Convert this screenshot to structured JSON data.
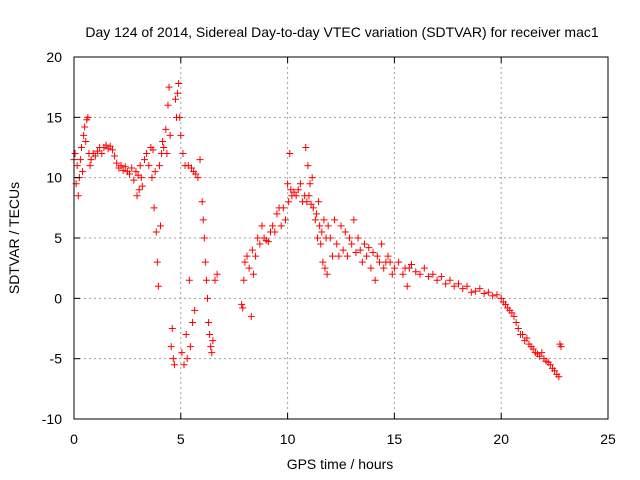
{
  "chart_data": {
    "type": "scatter",
    "title": "Day 124 of 2014, Sidereal Day-to-day VTEC variation (SDTVAR) for receiver mac1",
    "xlabel": "GPS time / hours",
    "ylabel": "SDTVAR / TECUs",
    "xlim": [
      0,
      25
    ],
    "ylim": [
      -10,
      20
    ],
    "xticks": [
      0,
      5,
      10,
      15,
      20,
      25
    ],
    "yticks": [
      -10,
      -5,
      0,
      5,
      10,
      15,
      20
    ],
    "grid": true,
    "marker": "+",
    "color": "#ff0000",
    "series": [
      {
        "name": "mac1",
        "points": [
          [
            0.0,
            11.5
          ],
          [
            0.05,
            12.0
          ],
          [
            0.1,
            9.5
          ],
          [
            0.15,
            11.0
          ],
          [
            0.2,
            8.5
          ],
          [
            0.25,
            10.0
          ],
          [
            0.3,
            11.5
          ],
          [
            0.35,
            12.5
          ],
          [
            0.4,
            10.5
          ],
          [
            0.45,
            13.5
          ],
          [
            0.5,
            14.2
          ],
          [
            0.55,
            13.0
          ],
          [
            0.6,
            14.8
          ],
          [
            0.65,
            15.0
          ],
          [
            0.7,
            12.0
          ],
          [
            0.75,
            11.0
          ],
          [
            0.8,
            11.5
          ],
          [
            0.9,
            12.0
          ],
          [
            1.0,
            11.8
          ],
          [
            1.1,
            12.2
          ],
          [
            1.2,
            12.5
          ],
          [
            1.3,
            12.0
          ],
          [
            1.4,
            12.5
          ],
          [
            1.5,
            12.7
          ],
          [
            1.6,
            12.4
          ],
          [
            1.7,
            12.6
          ],
          [
            1.8,
            12.3
          ],
          [
            1.9,
            11.8
          ],
          [
            2.0,
            11.2
          ],
          [
            2.1,
            10.8
          ],
          [
            2.2,
            11.0
          ],
          [
            2.3,
            10.6
          ],
          [
            2.4,
            10.9
          ],
          [
            2.5,
            10.5
          ],
          [
            2.6,
            10.3
          ],
          [
            2.7,
            10.8
          ],
          [
            2.8,
            9.8
          ],
          [
            2.9,
            10.5
          ],
          [
            2.95,
            8.5
          ],
          [
            3.0,
            10.2
          ],
          [
            3.05,
            9.0
          ],
          [
            3.1,
            11.0
          ],
          [
            3.15,
            10.0
          ],
          [
            3.2,
            9.3
          ],
          [
            3.3,
            11.5
          ],
          [
            3.4,
            12.0
          ],
          [
            3.5,
            11.0
          ],
          [
            3.6,
            12.5
          ],
          [
            3.65,
            10.0
          ],
          [
            3.7,
            12.3
          ],
          [
            3.75,
            7.5
          ],
          [
            3.8,
            10.5
          ],
          [
            3.85,
            5.5
          ],
          [
            3.9,
            3.0
          ],
          [
            3.95,
            1.0
          ],
          [
            4.0,
            11.0
          ],
          [
            4.05,
            6.0
          ],
          [
            4.1,
            12.0
          ],
          [
            4.15,
            13.0
          ],
          [
            4.2,
            12.5
          ],
          [
            4.3,
            14.0
          ],
          [
            4.35,
            12.0
          ],
          [
            4.4,
            16.0
          ],
          [
            4.45,
            17.5
          ],
          [
            4.5,
            13.5
          ],
          [
            4.55,
            -4.0
          ],
          [
            4.6,
            -2.5
          ],
          [
            4.65,
            -5.0
          ],
          [
            4.7,
            -5.5
          ],
          [
            4.75,
            16.5
          ],
          [
            4.8,
            15.0
          ],
          [
            4.85,
            17.0
          ],
          [
            4.9,
            17.8
          ],
          [
            4.95,
            15.0
          ],
          [
            5.0,
            13.5
          ],
          [
            5.05,
            -4.5
          ],
          [
            5.1,
            12.0
          ],
          [
            5.15,
            -5.5
          ],
          [
            5.2,
            11.0
          ],
          [
            5.25,
            -3.0
          ],
          [
            5.3,
            -5.0
          ],
          [
            5.35,
            11.0
          ],
          [
            5.4,
            1.5
          ],
          [
            5.45,
            -4.0
          ],
          [
            5.5,
            10.8
          ],
          [
            5.55,
            -2.0
          ],
          [
            5.6,
            10.5
          ],
          [
            5.65,
            -1.0
          ],
          [
            5.7,
            10.3
          ],
          [
            5.8,
            10.0
          ],
          [
            5.9,
            11.5
          ],
          [
            6.0,
            8.0
          ],
          [
            6.05,
            6.5
          ],
          [
            6.1,
            5.0
          ],
          [
            6.15,
            3.0
          ],
          [
            6.2,
            1.5
          ],
          [
            6.25,
            0.0
          ],
          [
            6.3,
            -2.0
          ],
          [
            6.35,
            -3.0
          ],
          [
            6.4,
            -4.0
          ],
          [
            6.45,
            -4.5
          ],
          [
            6.5,
            -3.5
          ],
          [
            6.6,
            1.5
          ],
          [
            6.7,
            2.0
          ],
          [
            7.85,
            -0.5
          ],
          [
            7.9,
            -0.8
          ],
          [
            7.95,
            1.5
          ],
          [
            8.0,
            3.0
          ],
          [
            8.1,
            3.5
          ],
          [
            8.2,
            2.5
          ],
          [
            8.3,
            -1.5
          ],
          [
            8.35,
            4.0
          ],
          [
            8.4,
            2.0
          ],
          [
            8.5,
            3.5
          ],
          [
            8.6,
            5.0
          ],
          [
            8.7,
            4.5
          ],
          [
            8.8,
            6.0
          ],
          [
            8.9,
            5.0
          ],
          [
            9.0,
            4.8
          ],
          [
            9.1,
            4.7
          ],
          [
            9.2,
            5.5
          ],
          [
            9.3,
            6.0
          ],
          [
            9.4,
            5.5
          ],
          [
            9.5,
            7.0
          ],
          [
            9.6,
            7.5
          ],
          [
            9.7,
            6.0
          ],
          [
            9.8,
            7.5
          ],
          [
            9.9,
            6.5
          ],
          [
            10.0,
            9.5
          ],
          [
            10.05,
            8.0
          ],
          [
            10.1,
            12.0
          ],
          [
            10.15,
            9.0
          ],
          [
            10.2,
            8.5
          ],
          [
            10.3,
            8.8
          ],
          [
            10.4,
            8.5
          ],
          [
            10.5,
            9.0
          ],
          [
            10.6,
            9.5
          ],
          [
            10.7,
            8.0
          ],
          [
            10.8,
            8.5
          ],
          [
            10.85,
            12.5
          ],
          [
            10.9,
            8.0
          ],
          [
            10.95,
            11.0
          ],
          [
            11.0,
            8.5
          ],
          [
            11.05,
            9.5
          ],
          [
            11.1,
            7.8
          ],
          [
            11.15,
            10.0
          ],
          [
            11.2,
            7.5
          ],
          [
            11.3,
            6.5
          ],
          [
            11.35,
            7.0
          ],
          [
            11.4,
            5.0
          ],
          [
            11.45,
            8.0
          ],
          [
            11.5,
            6.0
          ],
          [
            11.55,
            4.5
          ],
          [
            11.6,
            5.5
          ],
          [
            11.65,
            3.0
          ],
          [
            11.7,
            6.5
          ],
          [
            11.75,
            2.5
          ],
          [
            11.8,
            5.0
          ],
          [
            11.85,
            2.0
          ],
          [
            11.9,
            6.0
          ],
          [
            12.0,
            5.0
          ],
          [
            12.1,
            3.5
          ],
          [
            12.2,
            6.5
          ],
          [
            12.3,
            4.5
          ],
          [
            12.4,
            3.5
          ],
          [
            12.5,
            6.0
          ],
          [
            12.6,
            4.0
          ],
          [
            12.7,
            5.5
          ],
          [
            12.8,
            3.5
          ],
          [
            12.9,
            5.0
          ],
          [
            13.0,
            4.5
          ],
          [
            13.1,
            6.5
          ],
          [
            13.2,
            3.8
          ],
          [
            13.3,
            5.0
          ],
          [
            13.4,
            4.0
          ],
          [
            13.5,
            3.0
          ],
          [
            13.6,
            4.5
          ],
          [
            13.7,
            3.5
          ],
          [
            13.8,
            4.2
          ],
          [
            13.9,
            2.5
          ],
          [
            14.0,
            3.8
          ],
          [
            14.1,
            1.5
          ],
          [
            14.2,
            3.5
          ],
          [
            14.3,
            3.0
          ],
          [
            14.4,
            4.5
          ],
          [
            14.5,
            2.5
          ],
          [
            14.6,
            3.0
          ],
          [
            14.7,
            3.5
          ],
          [
            14.8,
            3.0
          ],
          [
            14.9,
            2.0
          ],
          [
            15.0,
            2.5
          ],
          [
            15.2,
            3.0
          ],
          [
            15.4,
            2.0
          ],
          [
            15.5,
            2.5
          ],
          [
            15.6,
            1.0
          ],
          [
            15.7,
            2.5
          ],
          [
            15.8,
            2.8
          ],
          [
            16.0,
            2.2
          ],
          [
            16.2,
            2.0
          ],
          [
            16.4,
            2.5
          ],
          [
            16.6,
            1.8
          ],
          [
            16.8,
            2.0
          ],
          [
            17.0,
            1.5
          ],
          [
            17.2,
            1.8
          ],
          [
            17.4,
            1.2
          ],
          [
            17.6,
            1.5
          ],
          [
            17.8,
            1.0
          ],
          [
            18.0,
            1.2
          ],
          [
            18.2,
            0.8
          ],
          [
            18.4,
            1.0
          ],
          [
            18.6,
            0.5
          ],
          [
            18.8,
            0.6
          ],
          [
            19.0,
            0.8
          ],
          [
            19.2,
            0.4
          ],
          [
            19.4,
            0.5
          ],
          [
            19.6,
            0.2
          ],
          [
            19.8,
            0.3
          ],
          [
            20.0,
            0.0
          ],
          [
            20.1,
            -0.3
          ],
          [
            20.2,
            -0.5
          ],
          [
            20.3,
            -0.8
          ],
          [
            20.4,
            -1.0
          ],
          [
            20.5,
            -1.2
          ],
          [
            20.6,
            -1.5
          ],
          [
            20.7,
            -2.0
          ],
          [
            20.8,
            -2.5
          ],
          [
            20.9,
            -3.0
          ],
          [
            21.0,
            -3.0
          ],
          [
            21.1,
            -3.5
          ],
          [
            21.2,
            -3.3
          ],
          [
            21.3,
            -3.8
          ],
          [
            21.4,
            -4.0
          ],
          [
            21.5,
            -4.2
          ],
          [
            21.6,
            -4.5
          ],
          [
            21.7,
            -4.6
          ],
          [
            21.8,
            -4.8
          ],
          [
            21.9,
            -4.5
          ],
          [
            22.0,
            -5.0
          ],
          [
            22.1,
            -5.2
          ],
          [
            22.2,
            -5.3
          ],
          [
            22.3,
            -5.5
          ],
          [
            22.4,
            -5.8
          ],
          [
            22.5,
            -6.0
          ],
          [
            22.6,
            -6.3
          ],
          [
            22.7,
            -6.5
          ],
          [
            22.75,
            -3.8
          ],
          [
            22.8,
            -4.0
          ]
        ]
      }
    ]
  }
}
